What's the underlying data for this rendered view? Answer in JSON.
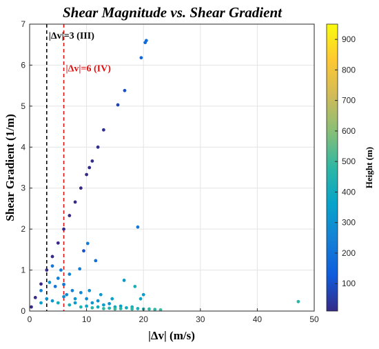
{
  "chart_data": {
    "type": "scatter",
    "title": "Shear Magnitude vs. Shear Gradient",
    "xlabel": "|Δv| (m/s)",
    "ylabel": "Shear Gradient (1/m)",
    "xlim": [
      0,
      50
    ],
    "ylim": [
      0,
      7
    ],
    "x_ticks": [
      "0",
      "10",
      "20",
      "30",
      "40",
      "50"
    ],
    "y_ticks": [
      "0",
      "1",
      "2",
      "3",
      "4",
      "5",
      "6",
      "7"
    ],
    "grid": true,
    "colorbar": {
      "label": "Height (m)",
      "range": [
        10,
        950
      ],
      "ticks": [
        "100",
        "200",
        "300",
        "400",
        "500",
        "600",
        "700",
        "800",
        "900"
      ],
      "colormap": "parula"
    },
    "reference_lines": [
      {
        "x": 3,
        "color": "#000000",
        "style": "dashed",
        "label": "|Δv|=3 (III)",
        "label_y": 6.65
      },
      {
        "x": 6,
        "color": "#e01010",
        "style": "dashed",
        "label": "|Δv|=6 (IV)",
        "label_y": 5.85
      }
    ],
    "series": [
      {
        "description_group": "linear-band",
        "points": [
          [
            0.3,
            0.1,
            10
          ],
          [
            1,
            0.33,
            10
          ],
          [
            2,
            0.66,
            10
          ],
          [
            3,
            1,
            10
          ],
          [
            4,
            1.33,
            10
          ],
          [
            5,
            1.66,
            10
          ],
          [
            6,
            2,
            10
          ],
          [
            7,
            2.33,
            10
          ],
          [
            8,
            2.66,
            10
          ],
          [
            9,
            3,
            10
          ],
          [
            10,
            3.33,
            10
          ]
        ]
      },
      {
        "description_group": "linear-band-upper",
        "points": [
          [
            10.5,
            3.5,
            15
          ],
          [
            11,
            3.66,
            15
          ],
          [
            12,
            4.0,
            20
          ],
          [
            13,
            4.42,
            25
          ],
          [
            15.5,
            5.03,
            70
          ],
          [
            16.7,
            5.38,
            100
          ],
          [
            19.6,
            6.18,
            160
          ],
          [
            20.3,
            6.55,
            170
          ],
          [
            20.5,
            6.6,
            180
          ]
        ]
      },
      {
        "description_group": "outliers",
        "points": [
          [
            19.0,
            2.05,
            220
          ],
          [
            10.2,
            1.65,
            230
          ],
          [
            9.5,
            1.47,
            100
          ],
          [
            11.6,
            1.23,
            190
          ],
          [
            8.8,
            1.03,
            240
          ],
          [
            16.6,
            0.75,
            320
          ],
          [
            18.5,
            0.6,
            420
          ],
          [
            47.2,
            0.23,
            470
          ]
        ]
      },
      {
        "description_group": "low-gradient-cluster",
        "points": [
          [
            2,
            0.5,
            260
          ],
          [
            3.5,
            0.7,
            300
          ],
          [
            4.5,
            0.6,
            200
          ],
          [
            5,
            0.8,
            250
          ],
          [
            6,
            0.65,
            200
          ],
          [
            6.5,
            0.4,
            280
          ],
          [
            7.5,
            0.5,
            240
          ],
          [
            8,
            0.3,
            320
          ],
          [
            9,
            0.45,
            260
          ],
          [
            10,
            0.3,
            280
          ],
          [
            11,
            0.2,
            320
          ],
          [
            12,
            0.25,
            300
          ],
          [
            13,
            0.15,
            350
          ],
          [
            14,
            0.18,
            300
          ],
          [
            15,
            0.1,
            380
          ],
          [
            16,
            0.12,
            350
          ],
          [
            17,
            0.08,
            400
          ],
          [
            18,
            0.1,
            420
          ],
          [
            19,
            0.06,
            430
          ],
          [
            20,
            0.05,
            450
          ],
          [
            21,
            0.05,
            470
          ],
          [
            22,
            0.04,
            480
          ],
          [
            23,
            0.03,
            500
          ],
          [
            5,
            0.2,
            400
          ],
          [
            7,
            0.15,
            420
          ],
          [
            9,
            0.1,
            450
          ],
          [
            11,
            0.08,
            470
          ],
          [
            13,
            0.06,
            490
          ],
          [
            15,
            0.05,
            500
          ],
          [
            2,
            0.2,
            350
          ],
          [
            3,
            0.3,
            300
          ],
          [
            4,
            0.25,
            320
          ],
          [
            6,
            0.35,
            280
          ],
          [
            8,
            0.2,
            330
          ],
          [
            10,
            0.12,
            380
          ],
          [
            12,
            0.1,
            400
          ],
          [
            14,
            0.07,
            440
          ],
          [
            16,
            0.06,
            460
          ],
          [
            18,
            0.05,
            480
          ],
          [
            20,
            0.4,
            340
          ],
          [
            19.5,
            0.3,
            380
          ],
          [
            12.5,
            0.4,
            330
          ],
          [
            14.5,
            0.3,
            350
          ],
          [
            10.5,
            0.5,
            300
          ],
          [
            7,
            0.9,
            260
          ],
          [
            5.5,
            1.0,
            240
          ],
          [
            4,
            1.1,
            220
          ]
        ]
      }
    ]
  }
}
